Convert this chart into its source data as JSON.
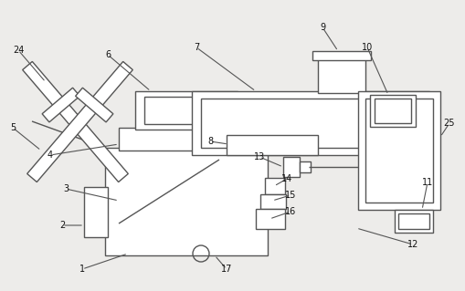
{
  "bg_color": "#edecea",
  "line_color": "#555555",
  "lw": 1.0,
  "fig_w": 5.1,
  "fig_h": 3.19,
  "dpi": 100
}
